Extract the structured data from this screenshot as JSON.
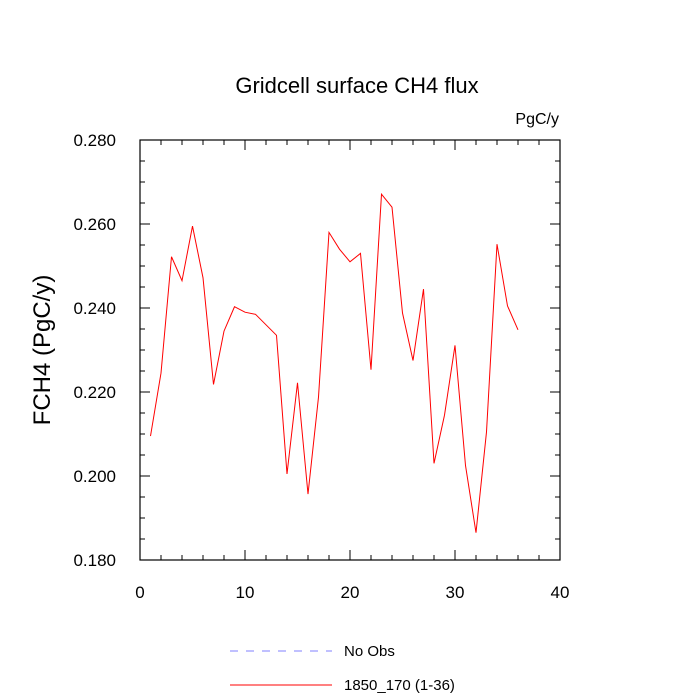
{
  "chart_data": {
    "type": "line",
    "title": "Gridcell surface CH4 flux",
    "units_label": "PgC/y",
    "ylabel": "FCH4  (PgC/y)",
    "xlabel": "",
    "xlim": [
      0,
      40
    ],
    "ylim": [
      0.18,
      0.28
    ],
    "x_ticks": [
      "0",
      "10",
      "20",
      "30",
      "40"
    ],
    "y_ticks": [
      "0.180",
      "0.200",
      "0.220",
      "0.240",
      "0.260",
      "0.280"
    ],
    "grid": false,
    "legend_position": "bottom",
    "series": [
      {
        "name": "1850_170 (1-36)",
        "color": "#ff0000",
        "style": "solid",
        "x": [
          1,
          2,
          3,
          4,
          5,
          6,
          7,
          8,
          9,
          10,
          11,
          12,
          13,
          14,
          15,
          16,
          17,
          18,
          19,
          20,
          21,
          22,
          23,
          24,
          25,
          26,
          27,
          28,
          29,
          30,
          31,
          32,
          33,
          34,
          35,
          36
        ],
        "y": [
          0.2095,
          0.2245,
          0.2522,
          0.2465,
          0.2595,
          0.2472,
          0.2218,
          0.2345,
          0.2403,
          0.239,
          0.2385,
          0.236,
          0.2335,
          0.2005,
          0.2222,
          0.1957,
          0.2188,
          0.258,
          0.254,
          0.251,
          0.253,
          0.2253,
          0.2671,
          0.264,
          0.2388,
          0.2275,
          0.2445,
          0.203,
          0.2145,
          0.2311,
          0.2025,
          0.1865,
          0.2105,
          0.2552,
          0.2405,
          0.2348
        ]
      },
      {
        "name": "No Obs",
        "color": "#8080ff",
        "style": "dashed",
        "x": [],
        "y": []
      }
    ]
  }
}
